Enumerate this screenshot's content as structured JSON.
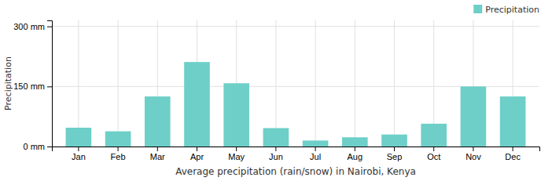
{
  "chart_data": {
    "type": "bar",
    "xlabel": "Average precipitation (rain/snow) in Nairobi, Kenya",
    "ylabel": "Precipitation",
    "categories": [
      "Jan",
      "Feb",
      "Mar",
      "Apr",
      "May",
      "Jun",
      "Jul",
      "Aug",
      "Sep",
      "Oct",
      "Nov",
      "Dec"
    ],
    "series": [
      {
        "name": "Precipitation",
        "color": "#6DCFC8",
        "values": [
          47,
          38,
          125,
          211,
          158,
          46,
          15,
          23,
          30,
          57,
          150,
          125
        ]
      }
    ],
    "ylim": [
      0,
      315
    ],
    "yticks": [
      {
        "value": 0,
        "label": "0 mm"
      },
      {
        "value": 150,
        "label": "150 mm"
      },
      {
        "value": 300,
        "label": "300 mm"
      }
    ],
    "grid": true,
    "legend": "upper right"
  }
}
